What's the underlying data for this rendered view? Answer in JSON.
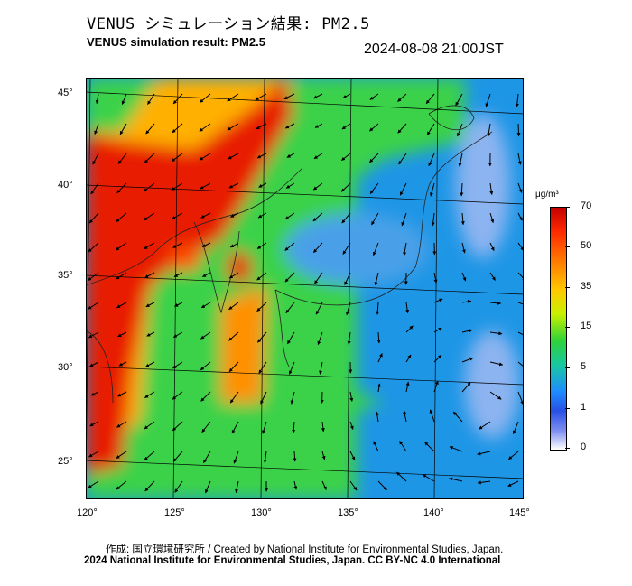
{
  "title_jp": "VENUS シミュレーション結果: PM2.5",
  "title_en": "VENUS simulation result: PM2.5",
  "timestamp": "2024-08-08 21:00JST",
  "map": {
    "lon_ticks": [
      "120°",
      "125°",
      "130°",
      "135°",
      "140°",
      "145°"
    ],
    "lat_ticks": [
      "45°",
      "40°",
      "35°",
      "30°",
      "25°"
    ]
  },
  "colorbar": {
    "unit": "μg/m³",
    "ticks": [
      "70",
      "50",
      "35",
      "15",
      "5",
      "1",
      "0"
    ],
    "colors": [
      "#c40000",
      "#ff2a00",
      "#ff7a00",
      "#ffc800",
      "#c8f000",
      "#2ed23a",
      "#18c8a0",
      "#1e8cff",
      "#2850e6",
      "#7a8cf0",
      "#ffffff"
    ]
  },
  "credit": "作成: 国立環境研究所 / Created by National Institute for Environmental Studies, Japan.",
  "copyright": "2024 National Institute for Environmental Studies, Japan. CC BY-NC 4.0 International"
}
